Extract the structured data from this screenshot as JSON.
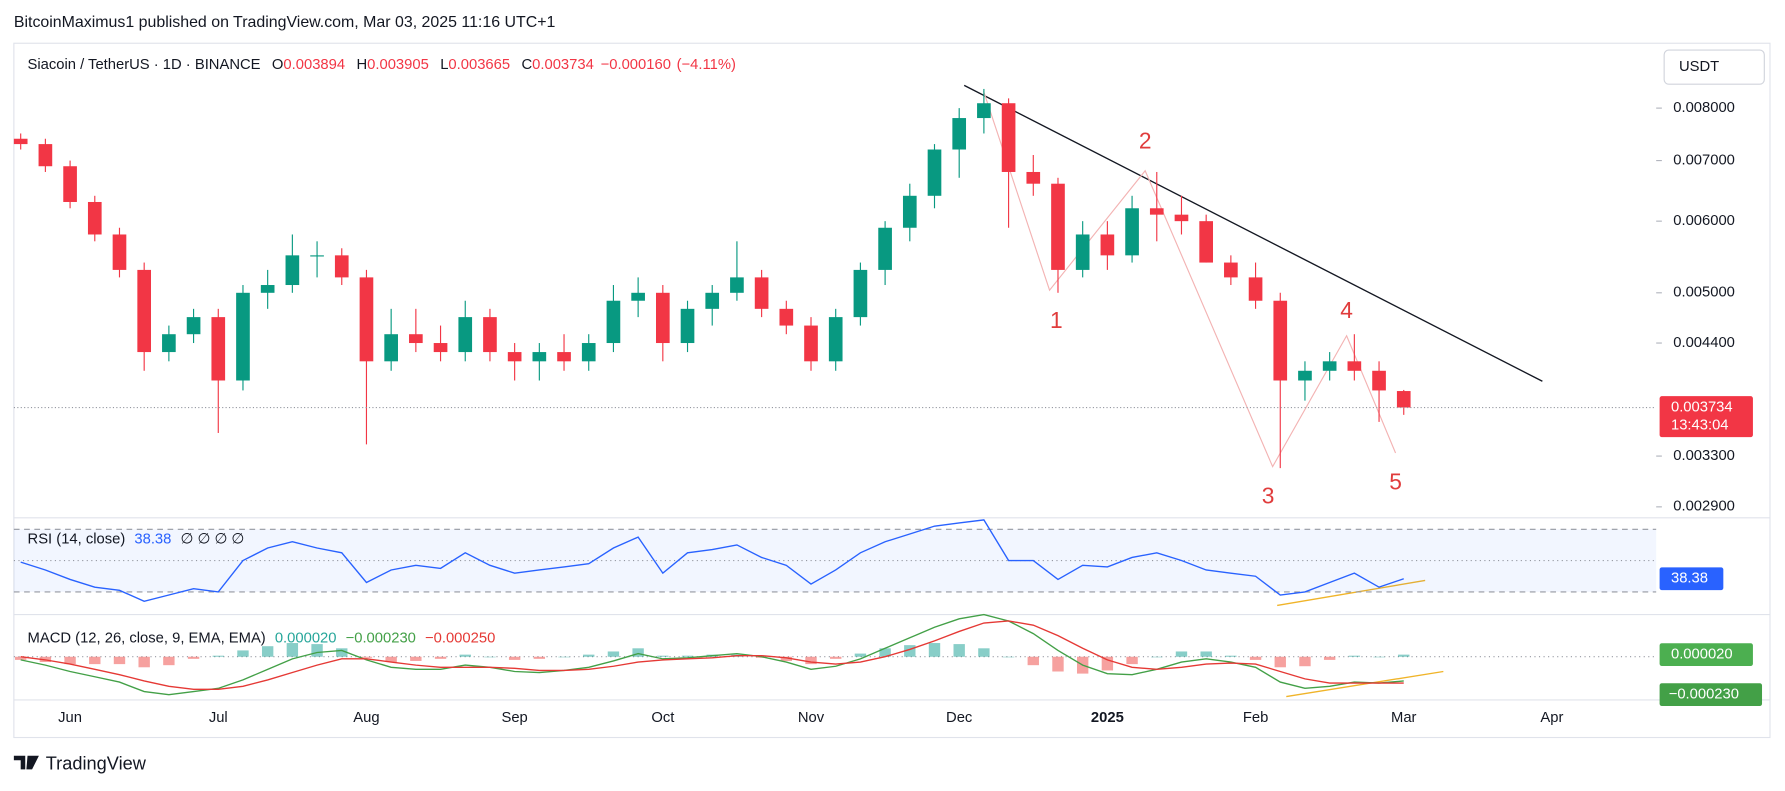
{
  "header": {
    "attribution": "BitcoinMaximus1 published on TradingView.com, Mar 03, 2025 11:16 UTC+1",
    "symbol": "Siacoin / TetherUS · 1D · BINANCE",
    "ohlc": [
      {
        "key": "O",
        "value": "0.003894"
      },
      {
        "key": "H",
        "value": "0.003905"
      },
      {
        "key": "L",
        "value": "0.003665"
      },
      {
        "key": "C",
        "value": "0.003734"
      }
    ],
    "change": "−0.000160",
    "change_percent": "(−4.11%)"
  },
  "currency_button": "USDT",
  "last_price": {
    "value": "0.003734",
    "countdown": "13:43:04"
  },
  "annotations": {
    "wave_labels": [
      "1",
      "2",
      "3",
      "4",
      "5"
    ]
  },
  "footer": {
    "brand": "TradingView"
  },
  "chart_data": [
    {
      "type": "candlestick",
      "log_scale": true,
      "grid": false,
      "up_color": "#089981",
      "down_color": "#f23645",
      "categories": [
        null,
        null,
        "Jun",
        null,
        null,
        null,
        null,
        null,
        "Jul",
        null,
        null,
        null,
        null,
        null,
        "Aug",
        null,
        null,
        null,
        null,
        null,
        "Sep",
        null,
        null,
        null,
        null,
        null,
        "Oct",
        null,
        null,
        null,
        null,
        null,
        "Nov",
        null,
        null,
        null,
        null,
        null,
        "Dec",
        null,
        null,
        null,
        null,
        null,
        "2025",
        null,
        null,
        null,
        null,
        null,
        "Feb",
        null,
        null,
        null,
        null,
        null,
        "Mar",
        null,
        null,
        null,
        null,
        null,
        "Apr",
        null,
        null,
        null,
        null
      ],
      "open": [
        0.0074,
        0.0073,
        0.0069,
        0.0063,
        0.0058,
        0.0053,
        0.0043,
        0.0045,
        0.0047,
        0.004,
        0.005,
        0.0051,
        0.0055,
        0.0055,
        0.0052,
        0.0042,
        0.0045,
        0.0044,
        0.0043,
        0.0047,
        0.0043,
        0.0042,
        0.0043,
        0.0042,
        0.0044,
        0.0049,
        0.005,
        0.0044,
        0.0048,
        0.005,
        0.0052,
        0.0048,
        0.0046,
        0.0042,
        0.0047,
        0.0053,
        0.0059,
        0.0064,
        0.0072,
        0.0078,
        0.0081,
        0.0068,
        0.0066,
        0.0053,
        0.0058,
        0.0055,
        0.0062,
        0.0061,
        0.006,
        0.0054,
        0.0052,
        0.0049,
        0.004,
        0.0041,
        0.0042,
        0.0041,
        0.003894,
        null,
        null,
        null,
        null,
        null,
        null,
        null,
        null,
        null,
        null
      ],
      "high": [
        0.0075,
        0.0074,
        0.007,
        0.0064,
        0.0059,
        0.0054,
        0.0046,
        0.0048,
        0.0048,
        0.0051,
        0.0053,
        0.0058,
        0.0057,
        0.0056,
        0.0053,
        0.0048,
        0.0048,
        0.0046,
        0.0049,
        0.0048,
        0.0044,
        0.0044,
        0.0045,
        0.0045,
        0.0051,
        0.0052,
        0.0051,
        0.0049,
        0.0051,
        0.0057,
        0.0053,
        0.0049,
        0.0047,
        0.0048,
        0.0054,
        0.006,
        0.0066,
        0.0073,
        0.008,
        0.0084,
        0.0082,
        0.0071,
        0.0067,
        0.006,
        0.006,
        0.0064,
        0.0068,
        0.0064,
        0.0061,
        0.0055,
        0.0054,
        0.005,
        0.0042,
        0.0043,
        0.0045,
        0.0042,
        0.003905,
        null,
        null,
        null,
        null,
        null,
        null,
        null,
        null,
        null,
        null
      ],
      "low": [
        0.0072,
        0.0068,
        0.0062,
        0.0057,
        0.0052,
        0.0041,
        0.0042,
        0.0044,
        0.0035,
        0.0039,
        0.0048,
        0.005,
        0.0052,
        0.0051,
        0.0034,
        0.0041,
        0.0043,
        0.0042,
        0.0042,
        0.0042,
        0.004,
        0.004,
        0.0041,
        0.0041,
        0.0043,
        0.0047,
        0.0042,
        0.0043,
        0.0046,
        0.0049,
        0.0047,
        0.0045,
        0.0041,
        0.0041,
        0.0046,
        0.0051,
        0.0057,
        0.0062,
        0.0067,
        0.0075,
        0.0059,
        0.0064,
        0.005,
        0.0052,
        0.0053,
        0.0054,
        0.0057,
        0.0058,
        0.0054,
        0.0051,
        0.0048,
        0.0032,
        0.0038,
        0.004,
        0.004,
        0.0036,
        0.003665,
        null,
        null,
        null,
        null,
        null,
        null,
        null,
        null,
        null,
        null
      ],
      "close": [
        0.0073,
        0.0069,
        0.0063,
        0.0058,
        0.0053,
        0.0043,
        0.0045,
        0.0047,
        0.004,
        0.005,
        0.0051,
        0.0055,
        0.0055,
        0.0052,
        0.0042,
        0.0045,
        0.0044,
        0.0043,
        0.0047,
        0.0043,
        0.0042,
        0.0043,
        0.0042,
        0.0044,
        0.0049,
        0.005,
        0.0044,
        0.0048,
        0.005,
        0.0052,
        0.0048,
        0.0046,
        0.0042,
        0.0047,
        0.0053,
        0.0059,
        0.0064,
        0.0072,
        0.0078,
        0.0081,
        0.0068,
        0.0066,
        0.0053,
        0.0058,
        0.0055,
        0.0062,
        0.0061,
        0.006,
        0.0054,
        0.0052,
        0.0049,
        0.004,
        0.0041,
        0.0042,
        0.0041,
        0.0039,
        0.003734,
        null,
        null,
        null,
        null,
        null,
        null,
        null,
        null,
        null,
        null
      ],
      "ylim": [
        0.00282,
        0.0093
      ],
      "yticks": [
        {
          "value": 0.008,
          "label": "0.008000"
        },
        {
          "value": 0.007,
          "label": "0.007000"
        },
        {
          "value": 0.006,
          "label": "0.006000"
        },
        {
          "value": 0.005,
          "label": "0.005000"
        },
        {
          "value": 0.0044,
          "label": "0.004400"
        },
        {
          "value": 0.0033,
          "label": "0.003300"
        },
        {
          "value": 0.0029,
          "label": "0.002900"
        }
      ]
    },
    {
      "type": "line",
      "title": "RSI (14, close)",
      "color": "#2962ff",
      "na_marks": "∅ ∅ ∅ ∅",
      "values": [
        49,
        44,
        38,
        33,
        31,
        24,
        28,
        32,
        30,
        50,
        58,
        62,
        58,
        55,
        36,
        44,
        47,
        45,
        55,
        47,
        42,
        44,
        46,
        48,
        58,
        65,
        42,
        55,
        57,
        60,
        52,
        47,
        35,
        44,
        55,
        62,
        67,
        72,
        74,
        76,
        50,
        50,
        38,
        47,
        46,
        52,
        55,
        50,
        44,
        42,
        40,
        28,
        30,
        36,
        42,
        33,
        38.38
      ],
      "levels": [
        70,
        50,
        30
      ],
      "ylim": [
        15.5,
        77.3
      ]
    },
    {
      "type": "macd",
      "title": "MACD (12, 26, close, 9, EMA, EMA)",
      "legend_values": [
        "0.000020",
        "−0.000230",
        "−0.000250"
      ],
      "histogram": {
        "up_color": "#26a69a",
        "down_color": "#ef5350",
        "values": [
          -3e-05,
          -5e-05,
          -7e-05,
          -7e-05,
          -7e-05,
          -0.0001,
          -8e-05,
          -2e-05,
          1e-05,
          6e-05,
          0.0001,
          0.00013,
          0.00012,
          8e-05,
          -1e-05,
          -5e-05,
          -4e-05,
          -2e-05,
          2e-05,
          0,
          -3e-05,
          -2e-05,
          0,
          2e-05,
          5e-05,
          8e-05,
          1e-05,
          1e-05,
          2e-05,
          2e-05,
          -1e-05,
          -4e-05,
          -7e-05,
          -2e-05,
          3e-05,
          8e-05,
          0.00011,
          0.00013,
          0.00012,
          8e-05,
          0,
          -8e-05,
          -0.00014,
          -0.00016,
          -0.00013,
          -7e-05,
          0,
          5e-05,
          5e-05,
          1e-05,
          -3e-05,
          -0.0001,
          -9e-05,
          -3e-05,
          1e-05,
          0,
          2e-05
        ]
      },
      "macd": {
        "color": "#43a047",
        "values": [
          -3e-05,
          -8e-05,
          -0.00014,
          -0.00019,
          -0.00024,
          -0.00033,
          -0.00036,
          -0.00033,
          -0.0003,
          -0.00022,
          -0.00012,
          -2e-05,
          4e-05,
          6e-05,
          -3e-05,
          -0.0001,
          -0.00012,
          -0.00012,
          -8e-05,
          -0.0001,
          -0.00014,
          -0.00015,
          -0.00013,
          -0.0001,
          -4e-05,
          3e-05,
          -2e-05,
          -1e-05,
          1e-05,
          3e-05,
          0,
          -5e-05,
          -0.00012,
          -9e-05,
          -2e-05,
          8e-05,
          0.00018,
          0.00028,
          0.00036,
          0.0004,
          0.00034,
          0.00022,
          6e-05,
          -8e-05,
          -0.00016,
          -0.00017,
          -0.00012,
          -5e-05,
          -2e-05,
          -5e-05,
          -0.0001,
          -0.00024,
          -0.0003,
          -0.00028,
          -0.00024,
          -0.00025,
          -0.00023
        ]
      },
      "signal": {
        "color": "#e53935",
        "values": [
          0,
          -3e-05,
          -7e-05,
          -0.00012,
          -0.00017,
          -0.00023,
          -0.00028,
          -0.00031,
          -0.00031,
          -0.00028,
          -0.00022,
          -0.00015,
          -8e-05,
          -2e-05,
          -2e-05,
          -5e-05,
          -8e-05,
          -0.0001,
          -0.0001,
          -0.0001,
          -0.00011,
          -0.00013,
          -0.00013,
          -0.00012,
          -9e-05,
          -5e-05,
          -3e-05,
          -2e-05,
          -1e-05,
          1e-05,
          1e-05,
          -1e-05,
          -5e-05,
          -7e-05,
          -5e-05,
          0,
          7e-05,
          0.00015,
          0.00024,
          0.00032,
          0.00034,
          0.0003,
          0.0002,
          8e-05,
          -3e-05,
          -0.0001,
          -0.00012,
          -0.0001,
          -7e-05,
          -6e-05,
          -7e-05,
          -0.00014,
          -0.00021,
          -0.00025,
          -0.00025,
          -0.00025,
          -0.00025
        ]
      },
      "levels": [
        0
      ],
      "ylim": [
        -0.00041,
        0.0004
      ]
    }
  ]
}
